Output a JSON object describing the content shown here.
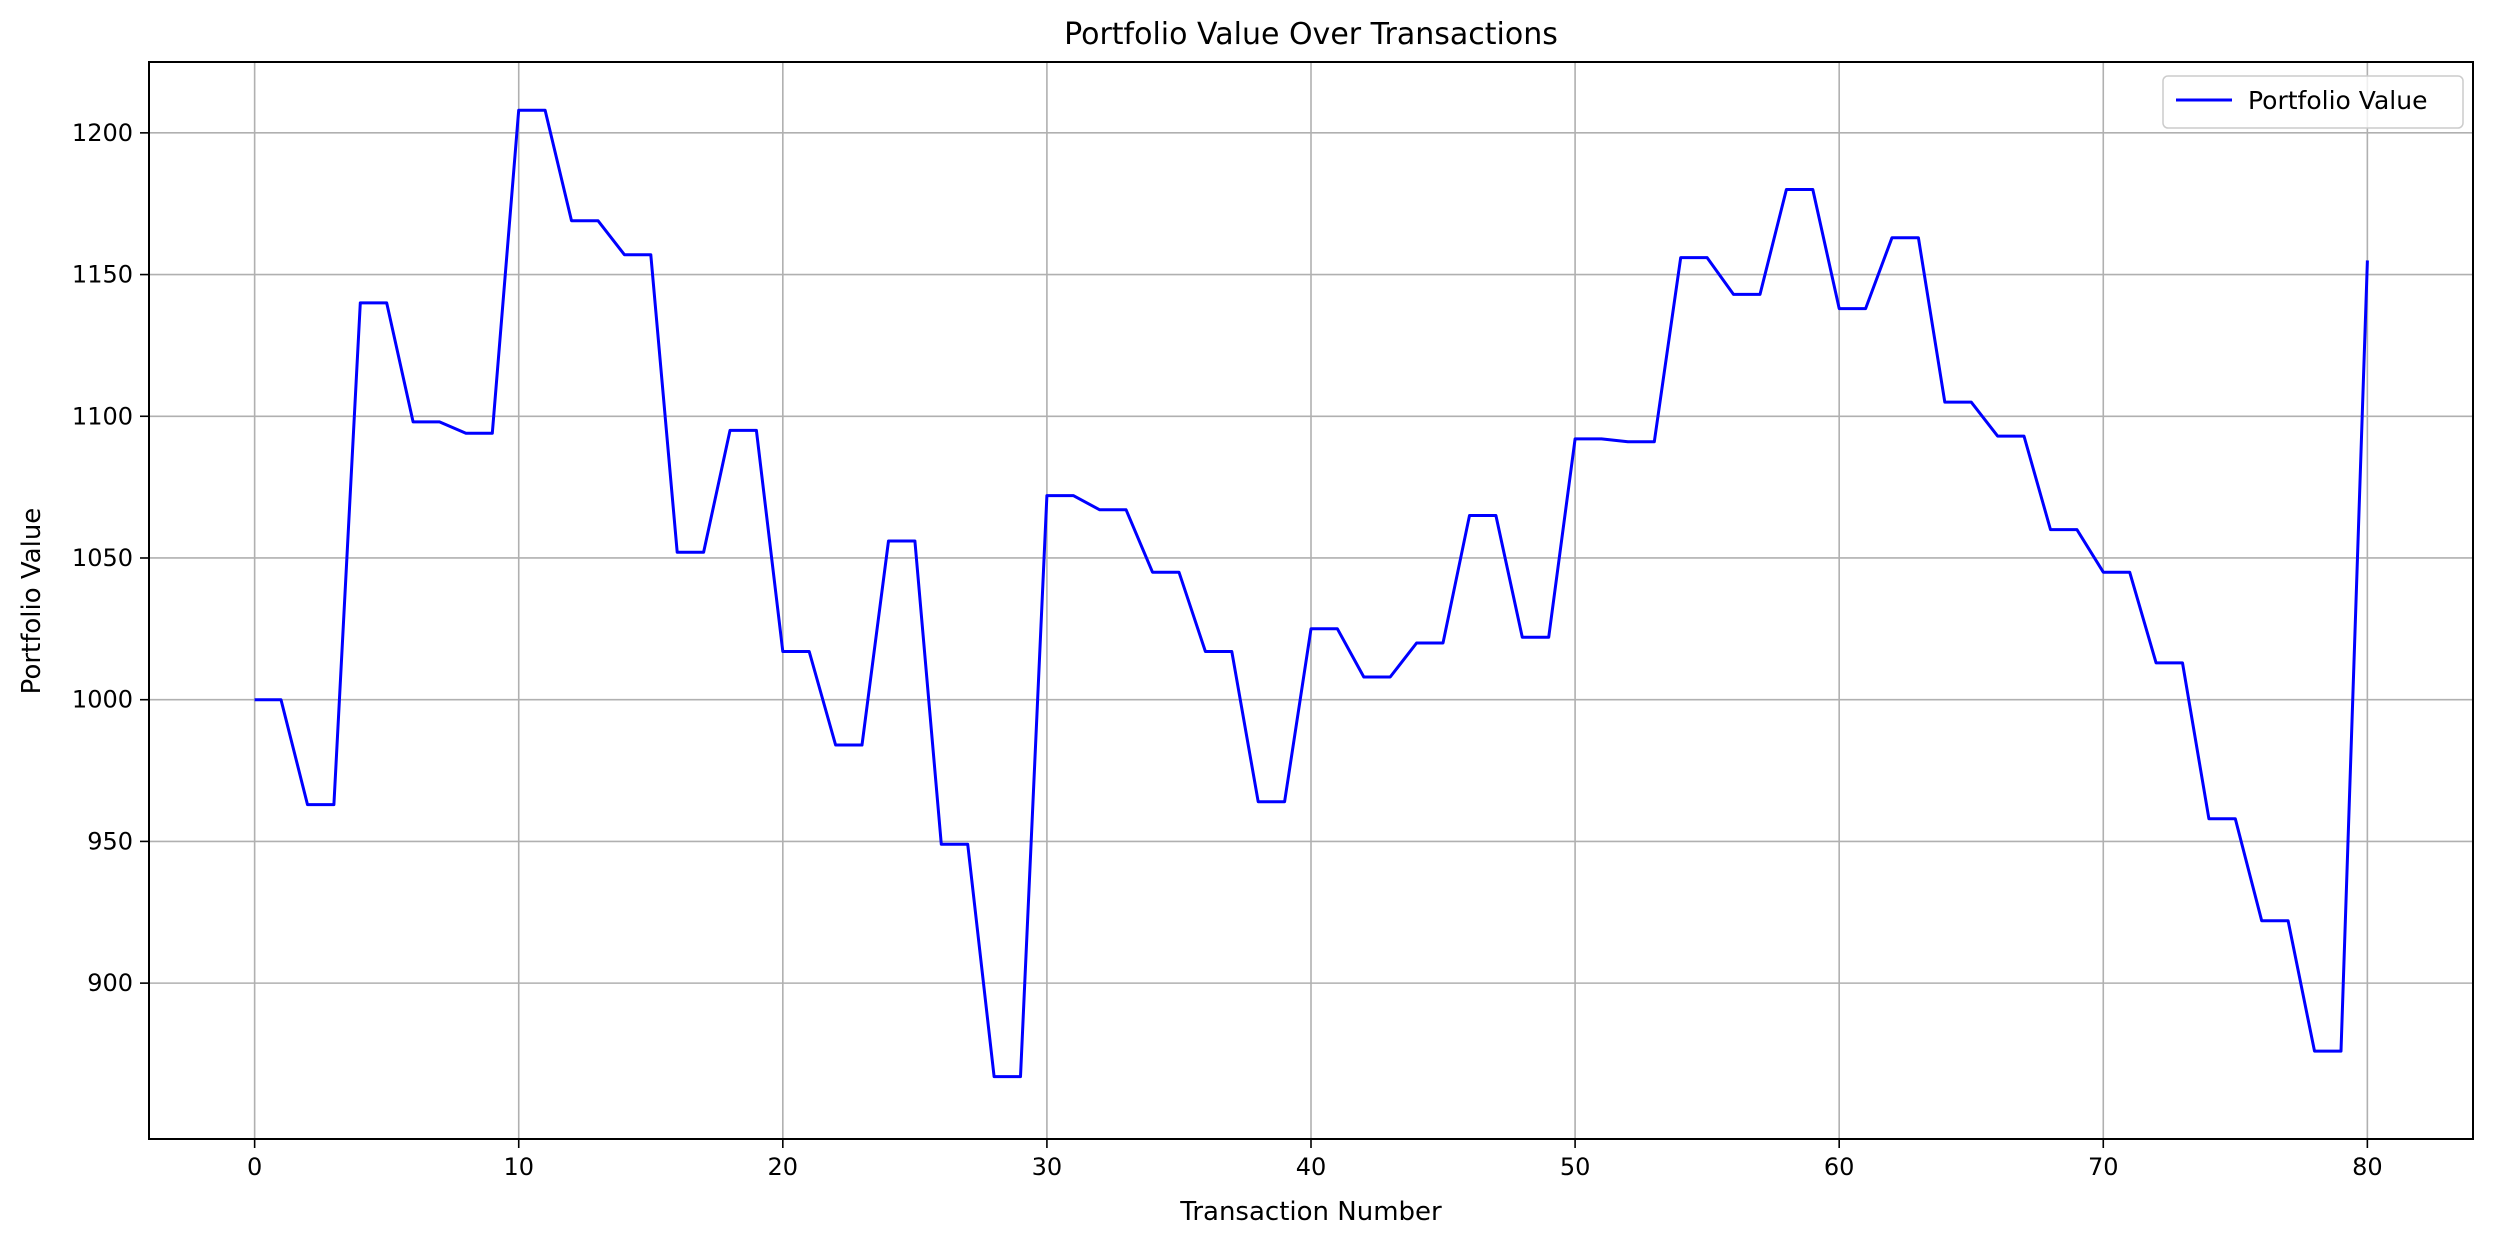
{
  "chart_data": {
    "type": "line",
    "title": "Portfolio Value Over Transactions",
    "xlabel": "Transaction Number",
    "ylabel": "Portfolio Value",
    "xlim": [
      -4,
      84
    ],
    "ylim": [
      845,
      1225
    ],
    "xticks": [
      0,
      10,
      20,
      30,
      40,
      50,
      60,
      70,
      80
    ],
    "yticks": [
      900,
      950,
      1000,
      1050,
      1100,
      1150,
      1200
    ],
    "grid": true,
    "legend_position": "top-right",
    "series": [
      {
        "name": "Portfolio Value",
        "color": "#0000ff",
        "x": [
          0,
          1,
          2,
          3,
          4,
          5,
          6,
          7,
          8,
          9,
          10,
          11,
          12,
          13,
          14,
          15,
          16,
          17,
          18,
          19,
          20,
          21,
          22,
          23,
          24,
          25,
          26,
          27,
          28,
          29,
          30,
          31,
          32,
          33,
          34,
          35,
          36,
          37,
          38,
          39,
          40,
          41,
          42,
          43,
          44,
          45,
          46,
          47,
          48,
          49,
          50,
          51,
          52,
          53,
          54,
          55,
          56,
          57,
          58,
          59,
          60,
          61,
          62,
          63,
          64,
          65,
          66,
          67,
          68,
          69,
          70,
          71,
          72,
          73,
          74,
          75,
          76,
          77,
          78,
          79,
          80
        ],
        "values": [
          1000,
          1000,
          963,
          963,
          1140,
          1140,
          1098,
          1098,
          1094,
          1094,
          1208,
          1208,
          1169,
          1169,
          1157,
          1157,
          1052,
          1052,
          1095,
          1095,
          1017,
          1017,
          984,
          984,
          1056,
          1056,
          949,
          949,
          867,
          867,
          1072,
          1072,
          1067,
          1067,
          1045,
          1045,
          1017,
          1017,
          964,
          964,
          1025,
          1025,
          1008,
          1008,
          1020,
          1020,
          1065,
          1065,
          1022,
          1022,
          1092,
          1092,
          1091,
          1091,
          1156,
          1156,
          1143,
          1143,
          1180,
          1180,
          1138,
          1138,
          1163,
          1163,
          1105,
          1105,
          1093,
          1093,
          1060,
          1060,
          1045,
          1045,
          1013,
          1013,
          958,
          958,
          922,
          922,
          876,
          876,
          1155
        ]
      }
    ]
  }
}
